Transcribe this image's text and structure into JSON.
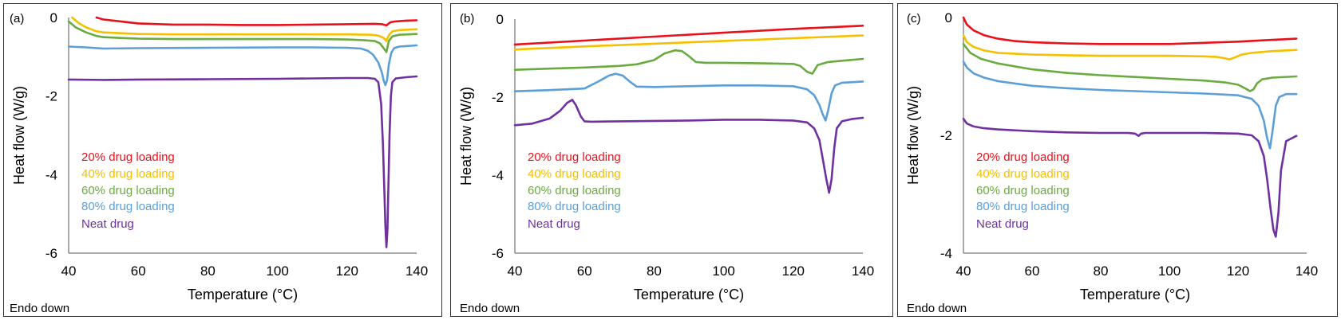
{
  "colors": {
    "20% drug loading": "#e8101a",
    "40% drug loading": "#f5c000",
    "60% drug loading": "#6aaa40",
    "80% drug loading": "#5b9fd6",
    "Neat drug": "#7030a0"
  },
  "chart_data": [
    {
      "type": "line",
      "panel_label": "(a)",
      "annotation": "Endo down",
      "xlabel": "Temperature (°C)",
      "ylabel": "Heat flow (W/g)",
      "xlim": [
        40,
        140
      ],
      "ylim": [
        -6,
        0
      ],
      "xticks": [
        "40",
        "60",
        "80",
        "100",
        "120",
        "140"
      ],
      "yticks": [
        "0",
        "-2",
        "-4",
        "-6"
      ],
      "legend_position": "lower-left",
      "series": [
        {
          "name": "20% drug loading",
          "x": [
            48,
            50,
            55,
            60,
            70,
            80,
            90,
            100,
            110,
            120,
            128,
            130,
            131.3,
            132.5,
            134,
            137,
            140
          ],
          "y": [
            0,
            -0.05,
            -0.1,
            -0.15,
            -0.18,
            -0.18,
            -0.19,
            -0.19,
            -0.18,
            -0.17,
            -0.16,
            -0.17,
            -0.2,
            -0.12,
            -0.1,
            -0.08,
            -0.07
          ]
        },
        {
          "name": "40% drug loading",
          "x": [
            41,
            43,
            45,
            48,
            50,
            55,
            60,
            70,
            80,
            90,
            100,
            110,
            120,
            127,
            129,
            130.5,
            131.3,
            132,
            133,
            135,
            140
          ],
          "y": [
            0,
            -0.15,
            -0.25,
            -0.35,
            -0.38,
            -0.4,
            -0.42,
            -0.43,
            -0.43,
            -0.43,
            -0.43,
            -0.43,
            -0.43,
            -0.44,
            -0.46,
            -0.52,
            -0.6,
            -0.45,
            -0.35,
            -0.32,
            -0.3
          ]
        },
        {
          "name": "60% drug loading",
          "x": [
            40,
            42,
            45,
            48,
            50,
            55,
            60,
            70,
            80,
            90,
            100,
            110,
            120,
            125,
            128,
            129.5,
            130.5,
            131.3,
            132,
            133,
            135,
            140
          ],
          "y": [
            -0.1,
            -0.25,
            -0.38,
            -0.47,
            -0.5,
            -0.52,
            -0.54,
            -0.55,
            -0.55,
            -0.55,
            -0.55,
            -0.55,
            -0.56,
            -0.58,
            -0.6,
            -0.66,
            -0.78,
            -0.88,
            -0.6,
            -0.48,
            -0.44,
            -0.42
          ]
        },
        {
          "name": "80% drug loading",
          "x": [
            40,
            45,
            50,
            60,
            80,
            100,
            110,
            120,
            124,
            126,
            127.5,
            129,
            130,
            130.5,
            131,
            131.5,
            132,
            132.7,
            133.5,
            135,
            140
          ],
          "y": [
            -0.74,
            -0.76,
            -0.79,
            -0.78,
            -0.77,
            -0.76,
            -0.76,
            -0.77,
            -0.79,
            -0.85,
            -0.95,
            -1.15,
            -1.4,
            -1.6,
            -1.72,
            -1.6,
            -1.2,
            -0.9,
            -0.78,
            -0.74,
            -0.71
          ]
        },
        {
          "name": "Neat drug",
          "x": [
            40,
            50,
            60,
            80,
            100,
            110,
            120,
            126,
            128,
            129,
            129.8,
            130.3,
            130.7,
            131,
            131.3,
            131.6,
            131.9,
            132.2,
            132.6,
            133,
            134,
            137,
            140
          ],
          "y": [
            -1.58,
            -1.59,
            -1.58,
            -1.57,
            -1.56,
            -1.55,
            -1.54,
            -1.54,
            -1.56,
            -1.65,
            -2.2,
            -3.2,
            -4.4,
            -5.3,
            -5.85,
            -5.4,
            -4.2,
            -3.0,
            -2.0,
            -1.65,
            -1.55,
            -1.52,
            -1.5
          ]
        }
      ]
    },
    {
      "type": "line",
      "panel_label": "(b)",
      "annotation": "Endo down",
      "xlabel": "Temperature (°C)",
      "ylabel": "Heat flow (W/g)",
      "xlim": [
        40,
        140
      ],
      "ylim": [
        -6,
        0
      ],
      "xticks": [
        "40",
        "60",
        "80",
        "100",
        "120",
        "140"
      ],
      "yticks": [
        "0",
        "-2",
        "-4",
        "-6"
      ],
      "legend_position": "lower-left",
      "series": [
        {
          "name": "20% drug loading",
          "x": [
            40,
            60,
            80,
            100,
            120,
            140
          ],
          "y": [
            -0.65,
            -0.55,
            -0.45,
            -0.35,
            -0.25,
            -0.17
          ]
        },
        {
          "name": "40% drug loading",
          "x": [
            40,
            60,
            80,
            100,
            120,
            140
          ],
          "y": [
            -0.78,
            -0.7,
            -0.63,
            -0.56,
            -0.49,
            -0.42
          ]
        },
        {
          "name": "60% drug loading",
          "x": [
            40,
            50,
            60,
            70,
            75,
            80,
            83,
            86,
            88,
            90,
            92,
            95,
            100,
            110,
            120,
            122,
            124,
            125.5,
            127,
            130,
            135,
            140
          ],
          "y": [
            -1.3,
            -1.27,
            -1.24,
            -1.2,
            -1.16,
            -1.05,
            -0.88,
            -0.8,
            -0.82,
            -0.95,
            -1.1,
            -1.12,
            -1.12,
            -1.13,
            -1.15,
            -1.2,
            -1.35,
            -1.4,
            -1.18,
            -1.1,
            -1.06,
            -1.02
          ]
        },
        {
          "name": "80% drug loading",
          "x": [
            40,
            50,
            60,
            64,
            67,
            69,
            71,
            73,
            75,
            80,
            90,
            100,
            110,
            120,
            124,
            126,
            127.5,
            128.5,
            129.3,
            130,
            131,
            132,
            134,
            140
          ],
          "y": [
            -1.85,
            -1.82,
            -1.78,
            -1.6,
            -1.45,
            -1.4,
            -1.45,
            -1.6,
            -1.73,
            -1.74,
            -1.72,
            -1.7,
            -1.7,
            -1.72,
            -1.8,
            -1.95,
            -2.2,
            -2.45,
            -2.6,
            -2.35,
            -1.9,
            -1.7,
            -1.63,
            -1.6
          ]
        },
        {
          "name": "Neat drug",
          "x": [
            40,
            45,
            50,
            53,
            55,
            56.5,
            57.5,
            59,
            60,
            62,
            70,
            80,
            90,
            100,
            110,
            120,
            124,
            126,
            127.5,
            128.5,
            129.5,
            130.3,
            131,
            131.8,
            132.5,
            134,
            137,
            140
          ],
          "y": [
            -2.72,
            -2.68,
            -2.55,
            -2.35,
            -2.15,
            -2.07,
            -2.2,
            -2.5,
            -2.62,
            -2.63,
            -2.62,
            -2.61,
            -2.6,
            -2.58,
            -2.58,
            -2.6,
            -2.65,
            -2.8,
            -3.1,
            -3.6,
            -4.1,
            -4.45,
            -4.1,
            -3.3,
            -2.8,
            -2.62,
            -2.56,
            -2.53
          ]
        }
      ]
    },
    {
      "type": "line",
      "panel_label": "(c)",
      "annotation": "Endo down",
      "xlabel": "Temperature (°C)",
      "ylabel": "Heat flow (W/g)",
      "xlim": [
        40,
        140
      ],
      "ylim": [
        -4,
        0
      ],
      "xticks": [
        "40",
        "60",
        "80",
        "100",
        "120",
        "140"
      ],
      "yticks": [
        "0",
        "-2",
        "-4"
      ],
      "legend_position": "lower-left",
      "series": [
        {
          "name": "20% drug loading",
          "x": [
            40,
            41,
            43,
            46,
            50,
            55,
            60,
            70,
            80,
            90,
            100,
            110,
            120,
            130,
            137
          ],
          "y": [
            0,
            -0.12,
            -0.22,
            -0.3,
            -0.36,
            -0.4,
            -0.42,
            -0.44,
            -0.45,
            -0.45,
            -0.45,
            -0.43,
            -0.41,
            -0.38,
            -0.36
          ]
        },
        {
          "name": "40% drug loading",
          "x": [
            40,
            41,
            43,
            46,
            50,
            60,
            70,
            80,
            90,
            100,
            110,
            114,
            116,
            117.5,
            119,
            121,
            124,
            130,
            137
          ],
          "y": [
            -0.3,
            -0.42,
            -0.5,
            -0.56,
            -0.6,
            -0.63,
            -0.64,
            -0.65,
            -0.65,
            -0.65,
            -0.66,
            -0.67,
            -0.69,
            -0.71,
            -0.68,
            -0.63,
            -0.6,
            -0.57,
            -0.55
          ]
        },
        {
          "name": "60% drug loading",
          "x": [
            40,
            42,
            45,
            50,
            60,
            70,
            80,
            90,
            100,
            110,
            116,
            120,
            122,
            123.5,
            124.5,
            125.5,
            127,
            130,
            137
          ],
          "y": [
            -0.45,
            -0.6,
            -0.7,
            -0.78,
            -0.88,
            -0.94,
            -0.98,
            -1.01,
            -1.04,
            -1.07,
            -1.1,
            -1.14,
            -1.2,
            -1.25,
            -1.22,
            -1.12,
            -1.05,
            -1.02,
            -1.0
          ]
        },
        {
          "name": "80% drug loading",
          "x": [
            40,
            41,
            43,
            46,
            50,
            60,
            70,
            80,
            90,
            100,
            110,
            120,
            124,
            126,
            127.5,
            128.5,
            129.3,
            130,
            131,
            132,
            134,
            137
          ],
          "y": [
            -0.75,
            -0.85,
            -0.95,
            -1.02,
            -1.08,
            -1.16,
            -1.2,
            -1.23,
            -1.25,
            -1.27,
            -1.29,
            -1.32,
            -1.38,
            -1.5,
            -1.75,
            -2.05,
            -2.22,
            -1.95,
            -1.5,
            -1.35,
            -1.3,
            -1.3
          ]
        },
        {
          "name": "Neat drug",
          "x": [
            40,
            41,
            43,
            46,
            50,
            60,
            70,
            80,
            88,
            90,
            91,
            91.8,
            93,
            100,
            110,
            120,
            124,
            126,
            127.5,
            128.5,
            129.5,
            130.3,
            131,
            131.8,
            132.5,
            134,
            137
          ],
          "y": [
            -1.72,
            -1.8,
            -1.85,
            -1.88,
            -1.9,
            -1.93,
            -1.95,
            -1.96,
            -1.96,
            -1.97,
            -2.01,
            -1.97,
            -1.96,
            -1.96,
            -1.96,
            -1.97,
            -2.0,
            -2.1,
            -2.35,
            -2.75,
            -3.25,
            -3.6,
            -3.72,
            -3.3,
            -2.6,
            -2.1,
            -2.01
          ]
        }
      ]
    }
  ]
}
